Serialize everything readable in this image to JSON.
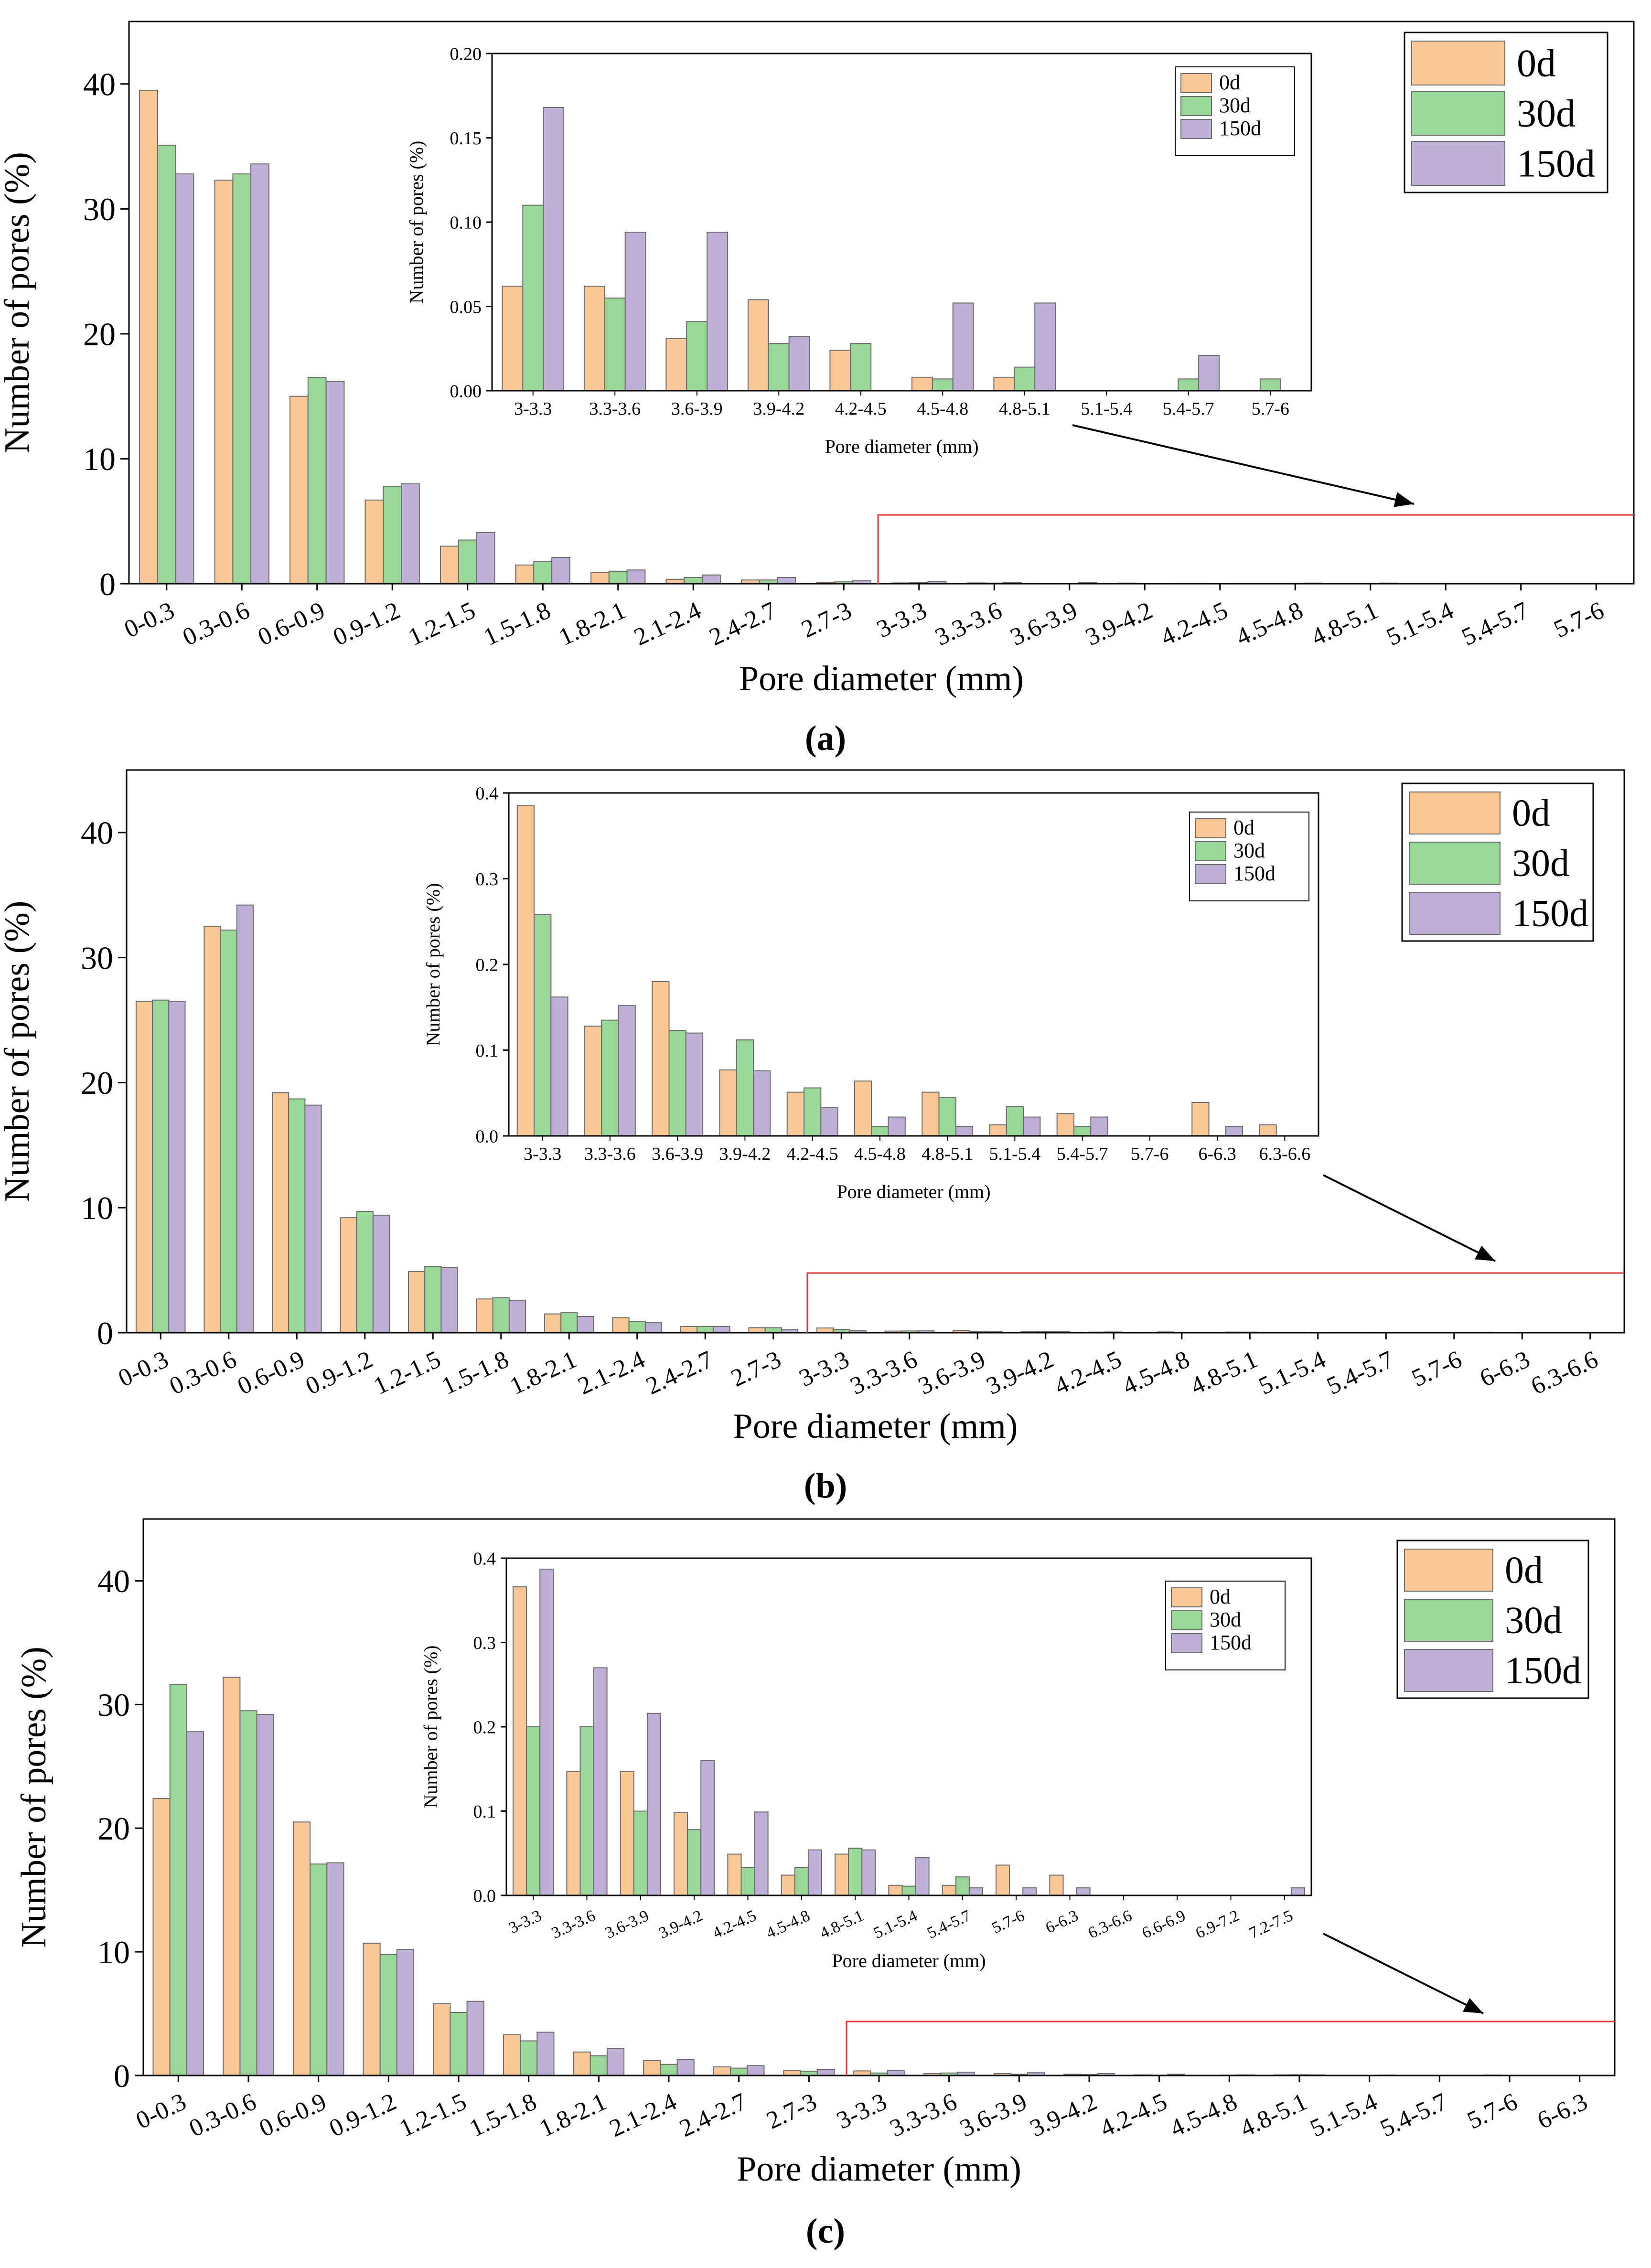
{
  "series_names": [
    "0d",
    "30d",
    "150d"
  ],
  "series_colors": [
    "#FAC896",
    "#9AD89A",
    "#BFB0D8"
  ],
  "highlight_color": "#E8323A",
  "chart_data": [
    {
      "panel_label": "(a)",
      "type": "bar",
      "xlabel": "Pore diameter (mm)",
      "ylabel": "Number of pores (%)",
      "ylim": [
        0,
        45
      ],
      "yticks": [
        0,
        10,
        20,
        30,
        40
      ],
      "categories": [
        "0-0.3",
        "0.3-0.6",
        "0.6-0.9",
        "0.9-1.2",
        "1.2-1.5",
        "1.5-1.8",
        "1.8-2.1",
        "2.1-2.4",
        "2.4-2.7",
        "2.7-3",
        "3-3.3",
        "3.3-3.6",
        "3.6-3.9",
        "3.9-4.2",
        "4.2-4.5",
        "4.5-4.8",
        "4.8-5.1",
        "5.1-5.4",
        "5.4-5.7",
        "5.7-6"
      ],
      "series": [
        {
          "name": "0d",
          "values": [
            39.5,
            32.3,
            15.0,
            6.7,
            3.0,
            1.5,
            0.9,
            0.35,
            0.3,
            0.12,
            0.06,
            0.06,
            0.03,
            0.05,
            0.02,
            0.01,
            0.01,
            0,
            0,
            0
          ]
        },
        {
          "name": "30d",
          "values": [
            35.1,
            32.8,
            16.5,
            7.8,
            3.5,
            1.8,
            1.0,
            0.5,
            0.3,
            0.15,
            0.11,
            0.05,
            0.04,
            0.03,
            0.03,
            0.01,
            0.01,
            0,
            0.01,
            0.01
          ]
        },
        {
          "name": "150d",
          "values": [
            32.8,
            33.6,
            16.2,
            8.0,
            4.1,
            2.1,
            1.1,
            0.7,
            0.5,
            0.25,
            0.17,
            0.09,
            0.09,
            0.03,
            0,
            0.05,
            0.05,
            0,
            0.02,
            0
          ]
        }
      ],
      "inset": {
        "xlabel": "Pore diameter (mm)",
        "ylabel": "Number of pores  (%)",
        "ylim": [
          0,
          0.2
        ],
        "yticks": [
          "0.00",
          "0.05",
          "0.10",
          "0.15",
          "0.20"
        ],
        "categories": [
          "3-3.3",
          "3.3-3.6",
          "3.6-3.9",
          "3.9-4.2",
          "4.2-4.5",
          "4.5-4.8",
          "4.8-5.1",
          "5.1-5.4",
          "5.4-5.7",
          "5.7-6"
        ],
        "series": [
          {
            "name": "0d",
            "values": [
              0.062,
              0.062,
              0.031,
              0.054,
              0.024,
              0.008,
              0.008,
              0,
              0,
              0
            ]
          },
          {
            "name": "30d",
            "values": [
              0.11,
              0.055,
              0.041,
              0.028,
              0.028,
              0.007,
              0.014,
              0,
              0.007,
              0.007
            ]
          },
          {
            "name": "150d",
            "values": [
              0.168,
              0.094,
              0.094,
              0.032,
              0,
              0.052,
              0.052,
              0,
              0.021,
              0
            ]
          }
        ]
      }
    },
    {
      "panel_label": "(b)",
      "type": "bar",
      "xlabel": "Pore diameter (mm)",
      "ylabel": "Number of pores (%)",
      "ylim": [
        0,
        45
      ],
      "yticks": [
        0,
        10,
        20,
        30,
        40
      ],
      "categories": [
        "0-0.3",
        "0.3-0.6",
        "0.6-0.9",
        "0.9-1.2",
        "1.2-1.5",
        "1.5-1.8",
        "1.8-2.1",
        "2.1-2.4",
        "2.4-2.7",
        "2.7-3",
        "3-3.3",
        "3.3-3.6",
        "3.6-3.9",
        "3.9-4.2",
        "4.2-4.5",
        "4.5-4.8",
        "4.8-5.1",
        "5.1-5.4",
        "5.4-5.7",
        "5.7-6",
        "6-6.3",
        "6.3-6.6"
      ],
      "series": [
        {
          "name": "0d",
          "values": [
            26.5,
            32.5,
            19.2,
            9.2,
            4.9,
            2.7,
            1.5,
            1.2,
            0.5,
            0.4,
            0.38,
            0.13,
            0.18,
            0.08,
            0.05,
            0.06,
            0.05,
            0.01,
            0.03,
            0,
            0.04,
            0.01
          ]
        },
        {
          "name": "30d",
          "values": [
            26.6,
            32.2,
            18.7,
            9.7,
            5.3,
            2.8,
            1.6,
            0.9,
            0.5,
            0.4,
            0.26,
            0.14,
            0.12,
            0.11,
            0.06,
            0.01,
            0.05,
            0.03,
            0.01,
            0,
            0,
            0
          ]
        },
        {
          "name": "150d",
          "values": [
            26.5,
            34.2,
            18.2,
            9.4,
            5.2,
            2.6,
            1.3,
            0.8,
            0.5,
            0.25,
            0.16,
            0.15,
            0.12,
            0.08,
            0.03,
            0.02,
            0.01,
            0.02,
            0.02,
            0,
            0.01,
            0
          ]
        }
      ],
      "inset": {
        "xlabel": "Pore diameter (mm)",
        "ylabel": "Number of pores (%)",
        "ylim": [
          0,
          0.4
        ],
        "yticks": [
          "0.0",
          "0.1",
          "0.2",
          "0.3",
          "0.4"
        ],
        "categories": [
          "3-3.3",
          "3.3-3.6",
          "3.6-3.9",
          "3.9-4.2",
          "4.2-4.5",
          "4.5-4.8",
          "4.8-5.1",
          "5.1-5.4",
          "5.4-5.7",
          "5.7-6",
          "6-6.3",
          "6.3-6.6"
        ],
        "series": [
          {
            "name": "0d",
            "values": [
              0.385,
              0.128,
              0.18,
              0.077,
              0.051,
              0.064,
              0.051,
              0.013,
              0.026,
              0,
              0.039,
              0.013
            ]
          },
          {
            "name": "30d",
            "values": [
              0.258,
              0.135,
              0.123,
              0.112,
              0.056,
              0.011,
              0.045,
              0.034,
              0.011,
              0,
              0,
              0
            ]
          },
          {
            "name": "150d",
            "values": [
              0.162,
              0.152,
              0.12,
              0.076,
              0.033,
              0.022,
              0.011,
              0.022,
              0.022,
              0,
              0.011,
              0
            ]
          }
        ]
      }
    },
    {
      "panel_label": "(c)",
      "type": "bar",
      "xlabel": "Pore diameter (mm)",
      "ylabel": "Number of pores (%)",
      "ylim": [
        0,
        45
      ],
      "yticks": [
        0,
        10,
        20,
        30,
        40
      ],
      "categories": [
        "0-0.3",
        "0.3-0.6",
        "0.6-0.9",
        "0.9-1.2",
        "1.2-1.5",
        "1.5-1.8",
        "1.8-2.1",
        "2.1-2.4",
        "2.4-2.7",
        "2.7-3",
        "3-3.3",
        "3.3-3.6",
        "3.6-3.9",
        "3.9-4.2",
        "4.2-4.5",
        "4.5-4.8",
        "4.8-5.1",
        "5.1-5.4",
        "5.4-5.7",
        "5.7-6",
        "6-6.3"
      ],
      "series": [
        {
          "name": "0d",
          "values": [
            22.4,
            32.2,
            20.5,
            10.7,
            5.8,
            3.3,
            1.9,
            1.2,
            0.7,
            0.4,
            0.37,
            0.15,
            0.15,
            0.1,
            0.05,
            0.02,
            0.05,
            0.01,
            0.01,
            0.04,
            0.02
          ]
        },
        {
          "name": "30d",
          "values": [
            31.6,
            29.5,
            17.1,
            9.8,
            5.1,
            2.8,
            1.6,
            0.9,
            0.6,
            0.35,
            0.2,
            0.2,
            0.1,
            0.08,
            0.03,
            0.03,
            0.06,
            0.01,
            0.02,
            0,
            0
          ]
        },
        {
          "name": "150d",
          "values": [
            27.8,
            29.2,
            17.2,
            10.2,
            6.0,
            3.5,
            2.2,
            1.3,
            0.8,
            0.5,
            0.39,
            0.27,
            0.22,
            0.16,
            0.1,
            0.05,
            0.05,
            0.04,
            0.01,
            0.01,
            0.01
          ]
        }
      ],
      "inset": {
        "xlabel": "Pore diameter (mm)",
        "ylabel": "Number of pores (%)",
        "ylim": [
          0,
          0.4
        ],
        "yticks": [
          "0.0",
          "0.1",
          "0.2",
          "0.3",
          "0.4"
        ],
        "categories": [
          "3-3.3",
          "3.3-3.6",
          "3.6-3.9",
          "3.9-4.2",
          "4.2-4.5",
          "4.5-4.8",
          "4.8-5.1",
          "5.1-5.4",
          "5.4-5.7",
          "5.7-6",
          "6-6.3",
          "6.3-6.6",
          "6.6-6.9",
          "6.9-7.2",
          "7.2-7.5"
        ],
        "series": [
          {
            "name": "0d",
            "values": [
              0.366,
              0.147,
              0.147,
              0.098,
              0.049,
              0.024,
              0.049,
              0.012,
              0.012,
              0.036,
              0.024,
              0,
              0,
              0,
              0
            ]
          },
          {
            "name": "30d",
            "values": [
              0.2,
              0.2,
              0.1,
              0.078,
              0.033,
              0.033,
              0.056,
              0.011,
              0.022,
              0,
              0,
              0,
              0,
              0,
              0
            ]
          },
          {
            "name": "150d",
            "values": [
              0.387,
              0.27,
              0.216,
              0.16,
              0.099,
              0.054,
              0.054,
              0.045,
              0.009,
              0.009,
              0.009,
              0,
              0,
              0,
              0.009
            ]
          }
        ]
      }
    }
  ]
}
